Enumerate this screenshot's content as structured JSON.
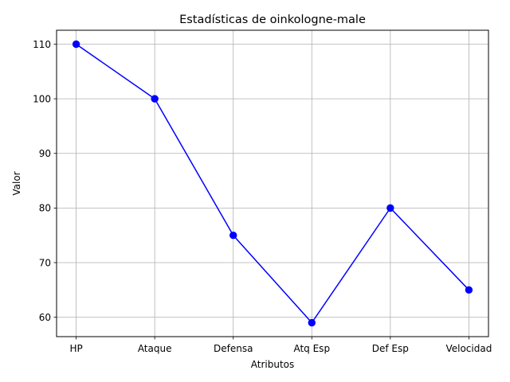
{
  "chart_data": {
    "type": "line",
    "title": "Estadísticas de oinkologne-male",
    "xlabel": "Atributos",
    "ylabel": "Valor",
    "categories": [
      "HP",
      "Ataque",
      "Defensa",
      "Atq Esp",
      "Def Esp",
      "Velocidad"
    ],
    "series": [
      {
        "values": [
          110,
          100,
          75,
          59,
          80,
          65
        ],
        "color": "#0000ff",
        "marker": "circle"
      }
    ],
    "ylim": [
      56.45,
      112.55
    ],
    "yticks": [
      60,
      70,
      80,
      90,
      100,
      110
    ],
    "grid": true
  }
}
